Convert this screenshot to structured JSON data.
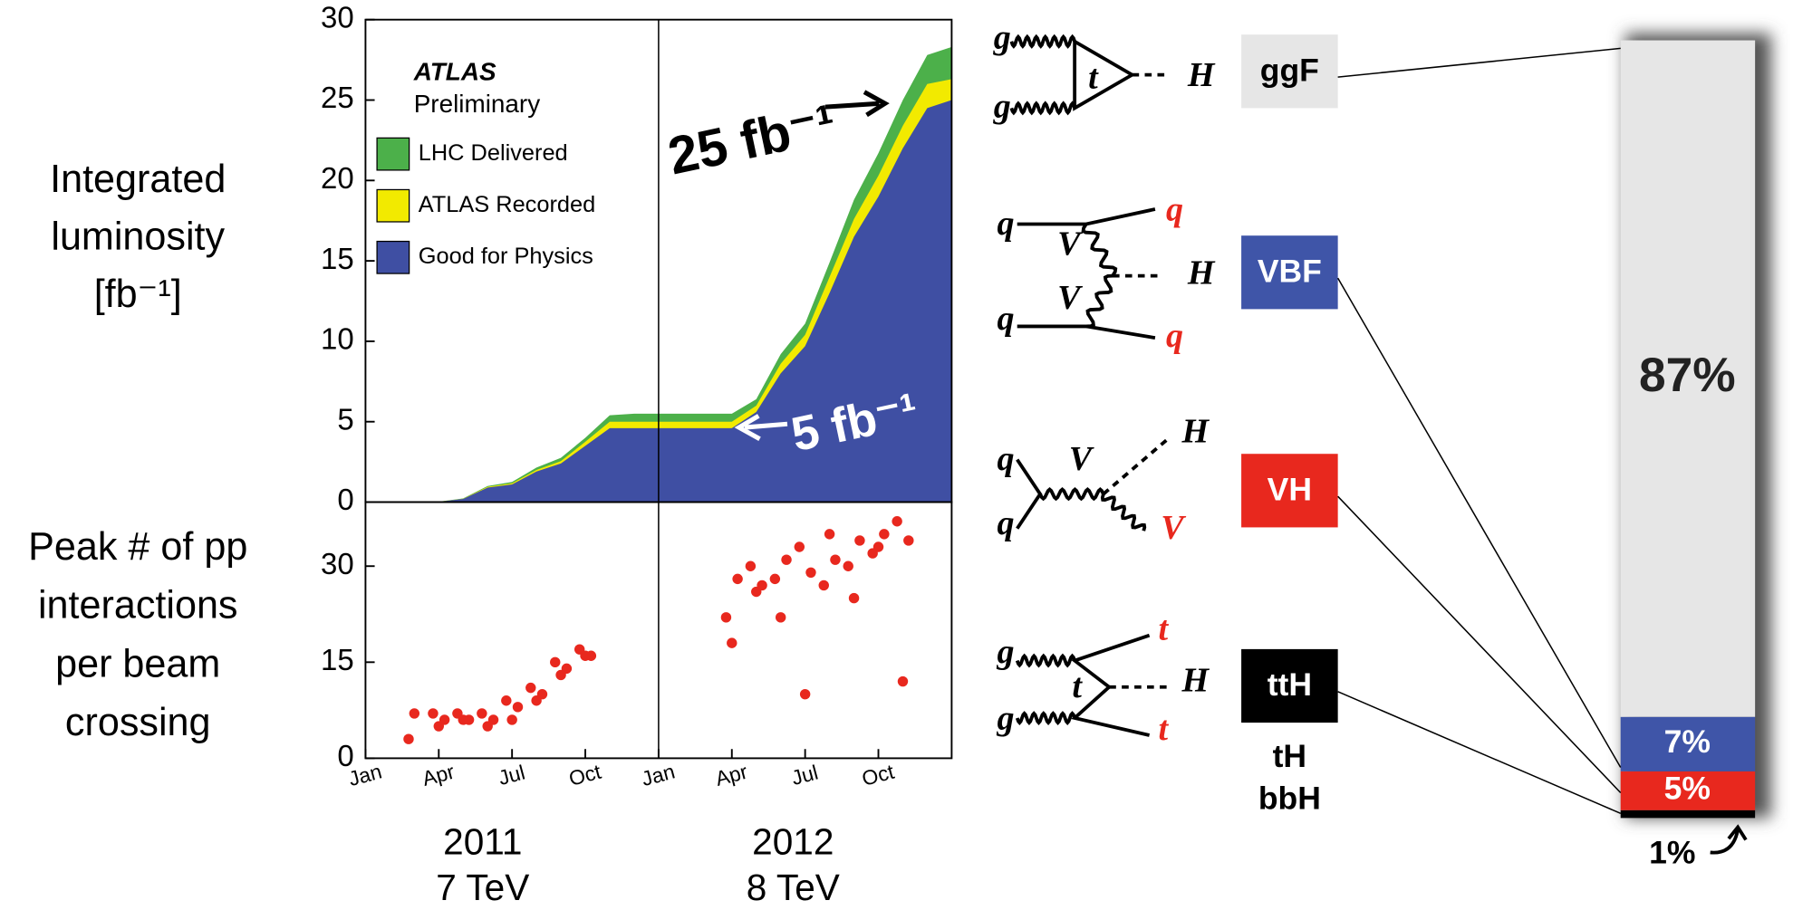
{
  "chart_data": [
    {
      "type": "area",
      "y_label": [
        "Integrated",
        "luminosity",
        "[fb⁻¹]"
      ],
      "annotations": {
        "brand": "ATLAS",
        "status": "Preliminary",
        "callouts": [
          "25 fb⁻¹",
          "5 fb⁻¹"
        ]
      },
      "x": [
        "2011-01",
        "2011-02",
        "2011-03",
        "2011-04",
        "2011-05",
        "2011-06",
        "2011-07",
        "2011-08",
        "2011-09",
        "2011-10",
        "2011-11",
        "2011-12",
        "2012-01",
        "2012-02",
        "2012-03",
        "2012-04",
        "2012-05",
        "2012-06",
        "2012-07",
        "2012-08",
        "2012-09",
        "2012-10",
        "2012-11",
        "2012-12",
        "2013-01"
      ],
      "series": [
        {
          "name": "LHC Delivered",
          "color": "#4cb04a",
          "values": [
            0,
            0,
            0,
            0.03,
            0.23,
            1.0,
            1.25,
            2.15,
            2.75,
            4.0,
            5.4,
            5.5,
            5.5,
            5.5,
            5.5,
            5.5,
            6.4,
            9.2,
            11.1,
            14.9,
            18.8,
            21.7,
            25.0,
            27.8,
            28.3
          ]
        },
        {
          "name": "ATLAS Recorded",
          "color": "#f2ea00",
          "values": [
            0,
            0,
            0,
            0.02,
            0.21,
            0.95,
            1.17,
            2.0,
            2.55,
            3.75,
            5.0,
            5.0,
            5.0,
            5.0,
            5.0,
            5.0,
            6.0,
            8.6,
            10.4,
            14.0,
            17.6,
            20.3,
            23.4,
            26.0,
            26.3
          ]
        },
        {
          "name": "Good for Physics",
          "color": "#3f4fa3",
          "values": [
            0,
            0,
            0,
            0.02,
            0.2,
            0.9,
            1.1,
            1.9,
            2.4,
            3.5,
            4.6,
            4.6,
            4.6,
            4.6,
            4.6,
            4.6,
            5.6,
            8.0,
            9.7,
            13.0,
            16.5,
            19.0,
            22.0,
            24.5,
            25.0
          ]
        }
      ],
      "xlim": [
        "2011-01",
        "2013-01"
      ],
      "ylim": [
        0,
        30
      ],
      "yticks": [
        0,
        5,
        10,
        15,
        20,
        25,
        30
      ],
      "legend": "upper left"
    },
    {
      "type": "scatter",
      "y_label": [
        "Peak # of pp",
        "interactions",
        "per beam",
        "crossing"
      ],
      "x": [
        "2011-03",
        "2011-03",
        "2011-04",
        "2011-04",
        "2011-04",
        "2011-05",
        "2011-05",
        "2011-05",
        "2011-06",
        "2011-06",
        "2011-06",
        "2011-07",
        "2011-07",
        "2011-07",
        "2011-08",
        "2011-08",
        "2011-08",
        "2011-09",
        "2011-09",
        "2011-09",
        "2011-10",
        "2011-10",
        "2011-10",
        "2012-04",
        "2012-04",
        "2012-04",
        "2012-05",
        "2012-05",
        "2012-05",
        "2012-06",
        "2012-06",
        "2012-06",
        "2012-07",
        "2012-07",
        "2012-07",
        "2012-08",
        "2012-08",
        "2012-08",
        "2012-09",
        "2012-09",
        "2012-09",
        "2012-10",
        "2012-10",
        "2012-10",
        "2012-11",
        "2012-11",
        "2012-11"
      ],
      "values": [
        3,
        7,
        6,
        7,
        5,
        6,
        7,
        6,
        6,
        7,
        5,
        8,
        9,
        6,
        10,
        11,
        9,
        14,
        15,
        13,
        16,
        17,
        16,
        28,
        22,
        18,
        27,
        30,
        26,
        31,
        28,
        22,
        29,
        33,
        10,
        31,
        27,
        35,
        34,
        30,
        25,
        35,
        32,
        33,
        34,
        37,
        12
      ],
      "color": "#e8281e",
      "xlim": [
        "2011-01",
        "2013-01"
      ],
      "ylim": [
        0,
        40
      ],
      "yticks": [
        0,
        15,
        30
      ],
      "xticks": [
        {
          "value": "2011-01",
          "label": "Jan"
        },
        {
          "value": "2011-04",
          "label": "Apr"
        },
        {
          "value": "2011-07",
          "label": "Jul"
        },
        {
          "value": "2011-10",
          "label": "Oct"
        },
        {
          "value": "2012-01",
          "label": "Jan"
        },
        {
          "value": "2012-04",
          "label": "Apr"
        },
        {
          "value": "2012-07",
          "label": "Jul"
        },
        {
          "value": "2012-10",
          "label": "Oct"
        }
      ],
      "x_annotations": [
        [
          "2011",
          "7 TeV"
        ],
        [
          "2012",
          "8 TeV"
        ]
      ]
    },
    {
      "type": "stacked_bar",
      "categories": [
        "ggF",
        "VBF",
        "VH",
        "ttH"
      ],
      "extra_labels": [
        "tH",
        "bbH"
      ],
      "values": [
        87,
        7,
        5,
        1
      ],
      "value_labels": [
        "87%",
        "7%",
        "5%",
        "1%"
      ],
      "colors": [
        "#e6e6e6",
        "#3f55a8",
        "#e8281e",
        "#000000"
      ],
      "ylim": [
        0,
        100
      ]
    }
  ],
  "diagrams": [
    {
      "labels": [
        "g",
        "g",
        "t",
        "H"
      ]
    },
    {
      "labels": [
        "q",
        "q",
        "V",
        "H",
        "V",
        "q",
        "q"
      ]
    },
    {
      "labels": [
        "q",
        "q",
        "V",
        "H",
        "V"
      ]
    },
    {
      "labels": [
        "g",
        "g",
        "t",
        "H",
        "t",
        "t"
      ]
    }
  ]
}
